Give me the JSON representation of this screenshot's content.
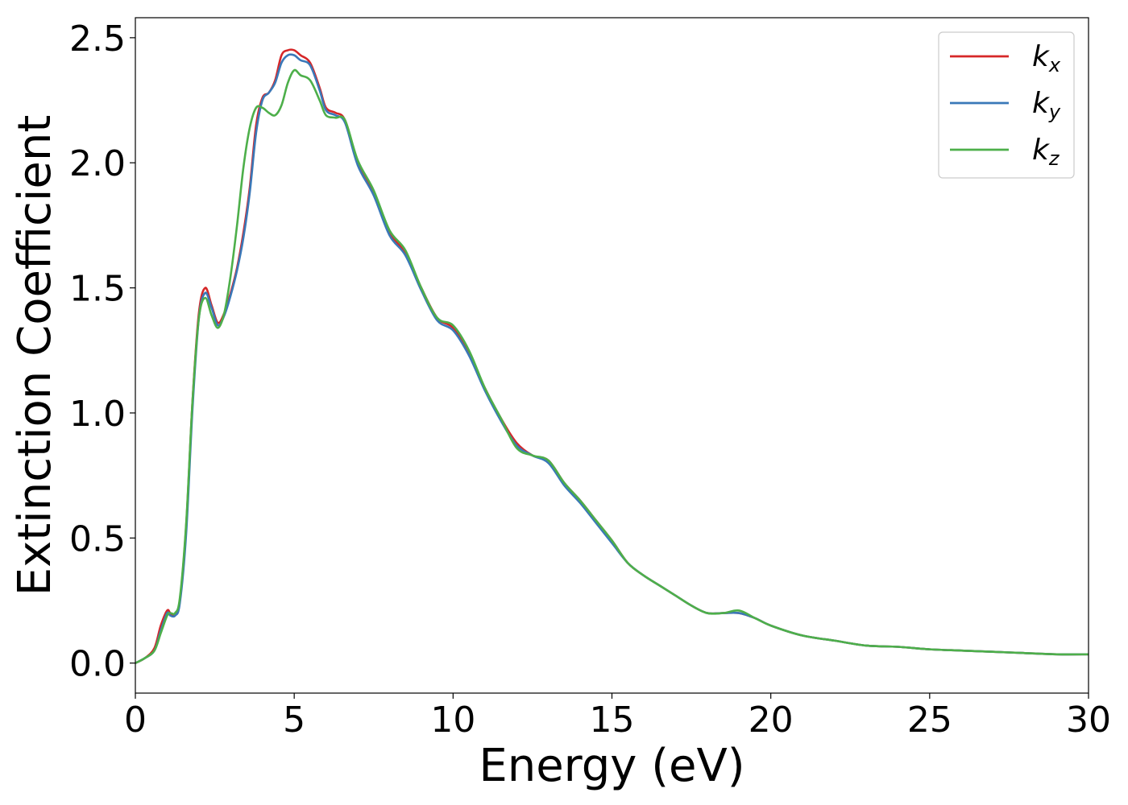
{
  "chart_data": {
    "type": "line",
    "xlabel": "Energy (eV)",
    "ylabel": "Extinction Coefficient",
    "xlim": [
      0,
      30
    ],
    "ylim": [
      -0.12,
      2.58
    ],
    "xticks": [
      0,
      5,
      10,
      15,
      20,
      25,
      30
    ],
    "xtick_labels": [
      "0",
      "5",
      "10",
      "15",
      "20",
      "25",
      "30"
    ],
    "yticks": [
      0.0,
      0.5,
      1.0,
      1.5,
      2.0,
      2.5
    ],
    "ytick_labels": [
      "0.0",
      "0.5",
      "1.0",
      "1.5",
      "2.0",
      "2.5"
    ],
    "grid": false,
    "legend_position": "top-right",
    "series": [
      {
        "name": "k_x",
        "label_main": "k",
        "label_sub": "x",
        "color": "#d62728",
        "points": [
          [
            0,
            0.0
          ],
          [
            0.3,
            0.02
          ],
          [
            0.6,
            0.06
          ],
          [
            0.8,
            0.15
          ],
          [
            1.0,
            0.21
          ],
          [
            1.1,
            0.2
          ],
          [
            1.25,
            0.19
          ],
          [
            1.4,
            0.25
          ],
          [
            1.6,
            0.55
          ],
          [
            1.8,
            1.05
          ],
          [
            2.0,
            1.4
          ],
          [
            2.2,
            1.5
          ],
          [
            2.4,
            1.43
          ],
          [
            2.6,
            1.36
          ],
          [
            2.8,
            1.4
          ],
          [
            3.0,
            1.48
          ],
          [
            3.2,
            1.58
          ],
          [
            3.4,
            1.72
          ],
          [
            3.6,
            1.9
          ],
          [
            3.8,
            2.15
          ],
          [
            4.0,
            2.26
          ],
          [
            4.2,
            2.28
          ],
          [
            4.4,
            2.33
          ],
          [
            4.6,
            2.43
          ],
          [
            4.8,
            2.45
          ],
          [
            5.0,
            2.45
          ],
          [
            5.2,
            2.43
          ],
          [
            5.5,
            2.4
          ],
          [
            5.8,
            2.3
          ],
          [
            6.0,
            2.22
          ],
          [
            6.3,
            2.2
          ],
          [
            6.6,
            2.17
          ],
          [
            7.0,
            2.0
          ],
          [
            7.5,
            1.88
          ],
          [
            8.0,
            1.72
          ],
          [
            8.5,
            1.64
          ],
          [
            9.0,
            1.5
          ],
          [
            9.5,
            1.38
          ],
          [
            10.0,
            1.34
          ],
          [
            10.5,
            1.24
          ],
          [
            11.0,
            1.1
          ],
          [
            11.5,
            0.98
          ],
          [
            12.0,
            0.88
          ],
          [
            12.5,
            0.83
          ],
          [
            13.0,
            0.81
          ],
          [
            13.5,
            0.72
          ],
          [
            14.0,
            0.65
          ],
          [
            14.5,
            0.57
          ],
          [
            15.0,
            0.49
          ],
          [
            15.5,
            0.4
          ],
          [
            16.0,
            0.35
          ],
          [
            16.5,
            0.31
          ],
          [
            17.0,
            0.27
          ],
          [
            17.5,
            0.23
          ],
          [
            18.0,
            0.2
          ],
          [
            18.5,
            0.2
          ],
          [
            19.0,
            0.2
          ],
          [
            19.5,
            0.18
          ],
          [
            20.0,
            0.15
          ],
          [
            21.0,
            0.11
          ],
          [
            22.0,
            0.09
          ],
          [
            23.0,
            0.07
          ],
          [
            24.0,
            0.065
          ],
          [
            25.0,
            0.055
          ],
          [
            26.0,
            0.05
          ],
          [
            27.0,
            0.045
          ],
          [
            28.0,
            0.04
          ],
          [
            29.0,
            0.035
          ],
          [
            30.0,
            0.035
          ]
        ]
      },
      {
        "name": "k_y",
        "label_main": "k",
        "label_sub": "y",
        "color": "#3a78b8",
        "points": [
          [
            0,
            0.0
          ],
          [
            0.3,
            0.02
          ],
          [
            0.6,
            0.05
          ],
          [
            0.8,
            0.13
          ],
          [
            1.0,
            0.2
          ],
          [
            1.1,
            0.19
          ],
          [
            1.25,
            0.19
          ],
          [
            1.4,
            0.24
          ],
          [
            1.6,
            0.52
          ],
          [
            1.8,
            1.02
          ],
          [
            2.0,
            1.38
          ],
          [
            2.2,
            1.48
          ],
          [
            2.4,
            1.42
          ],
          [
            2.6,
            1.35
          ],
          [
            2.8,
            1.39
          ],
          [
            3.0,
            1.47
          ],
          [
            3.2,
            1.57
          ],
          [
            3.4,
            1.7
          ],
          [
            3.6,
            1.88
          ],
          [
            3.8,
            2.12
          ],
          [
            4.0,
            2.25
          ],
          [
            4.2,
            2.28
          ],
          [
            4.4,
            2.32
          ],
          [
            4.6,
            2.4
          ],
          [
            4.8,
            2.43
          ],
          [
            5.0,
            2.43
          ],
          [
            5.2,
            2.41
          ],
          [
            5.5,
            2.39
          ],
          [
            5.8,
            2.29
          ],
          [
            6.0,
            2.21
          ],
          [
            6.3,
            2.19
          ],
          [
            6.6,
            2.16
          ],
          [
            7.0,
            1.99
          ],
          [
            7.5,
            1.87
          ],
          [
            8.0,
            1.71
          ],
          [
            8.5,
            1.63
          ],
          [
            9.0,
            1.49
          ],
          [
            9.5,
            1.37
          ],
          [
            10.0,
            1.33
          ],
          [
            10.5,
            1.23
          ],
          [
            11.0,
            1.09
          ],
          [
            11.5,
            0.97
          ],
          [
            12.0,
            0.87
          ],
          [
            12.5,
            0.83
          ],
          [
            13.0,
            0.8
          ],
          [
            13.5,
            0.71
          ],
          [
            14.0,
            0.64
          ],
          [
            14.5,
            0.56
          ],
          [
            15.0,
            0.48
          ],
          [
            15.5,
            0.4
          ],
          [
            16.0,
            0.35
          ],
          [
            16.5,
            0.31
          ],
          [
            17.0,
            0.27
          ],
          [
            17.5,
            0.23
          ],
          [
            18.0,
            0.2
          ],
          [
            18.5,
            0.2
          ],
          [
            19.0,
            0.2
          ],
          [
            19.5,
            0.18
          ],
          [
            20.0,
            0.15
          ],
          [
            21.0,
            0.11
          ],
          [
            22.0,
            0.09
          ],
          [
            23.0,
            0.07
          ],
          [
            24.0,
            0.065
          ],
          [
            25.0,
            0.055
          ],
          [
            26.0,
            0.05
          ],
          [
            27.0,
            0.045
          ],
          [
            28.0,
            0.04
          ],
          [
            29.0,
            0.035
          ],
          [
            30.0,
            0.035
          ]
        ]
      },
      {
        "name": "k_z",
        "label_main": "k",
        "label_sub": "z",
        "color": "#4daf4a",
        "points": [
          [
            0,
            0.0
          ],
          [
            0.3,
            0.02
          ],
          [
            0.6,
            0.05
          ],
          [
            0.8,
            0.12
          ],
          [
            1.0,
            0.19
          ],
          [
            1.1,
            0.2
          ],
          [
            1.25,
            0.2
          ],
          [
            1.4,
            0.26
          ],
          [
            1.6,
            0.56
          ],
          [
            1.8,
            1.05
          ],
          [
            2.0,
            1.38
          ],
          [
            2.2,
            1.46
          ],
          [
            2.4,
            1.39
          ],
          [
            2.6,
            1.34
          ],
          [
            2.8,
            1.4
          ],
          [
            3.0,
            1.55
          ],
          [
            3.2,
            1.75
          ],
          [
            3.4,
            1.98
          ],
          [
            3.6,
            2.14
          ],
          [
            3.8,
            2.22
          ],
          [
            4.0,
            2.22
          ],
          [
            4.2,
            2.2
          ],
          [
            4.4,
            2.19
          ],
          [
            4.6,
            2.23
          ],
          [
            4.8,
            2.32
          ],
          [
            5.0,
            2.37
          ],
          [
            5.2,
            2.35
          ],
          [
            5.5,
            2.33
          ],
          [
            5.8,
            2.25
          ],
          [
            6.0,
            2.19
          ],
          [
            6.3,
            2.18
          ],
          [
            6.6,
            2.17
          ],
          [
            7.0,
            2.01
          ],
          [
            7.5,
            1.89
          ],
          [
            8.0,
            1.73
          ],
          [
            8.5,
            1.65
          ],
          [
            9.0,
            1.5
          ],
          [
            9.5,
            1.38
          ],
          [
            10.0,
            1.35
          ],
          [
            10.5,
            1.25
          ],
          [
            11.0,
            1.1
          ],
          [
            11.5,
            0.98
          ],
          [
            12.0,
            0.86
          ],
          [
            12.5,
            0.83
          ],
          [
            13.0,
            0.81
          ],
          [
            13.5,
            0.72
          ],
          [
            14.0,
            0.65
          ],
          [
            14.5,
            0.57
          ],
          [
            15.0,
            0.49
          ],
          [
            15.5,
            0.4
          ],
          [
            16.0,
            0.35
          ],
          [
            16.5,
            0.31
          ],
          [
            17.0,
            0.27
          ],
          [
            17.5,
            0.23
          ],
          [
            18.0,
            0.2
          ],
          [
            18.5,
            0.2
          ],
          [
            19.0,
            0.21
          ],
          [
            19.5,
            0.18
          ],
          [
            20.0,
            0.15
          ],
          [
            21.0,
            0.11
          ],
          [
            22.0,
            0.09
          ],
          [
            23.0,
            0.07
          ],
          [
            24.0,
            0.065
          ],
          [
            25.0,
            0.055
          ],
          [
            26.0,
            0.05
          ],
          [
            27.0,
            0.045
          ],
          [
            28.0,
            0.04
          ],
          [
            29.0,
            0.035
          ],
          [
            30.0,
            0.035
          ]
        ]
      }
    ]
  }
}
